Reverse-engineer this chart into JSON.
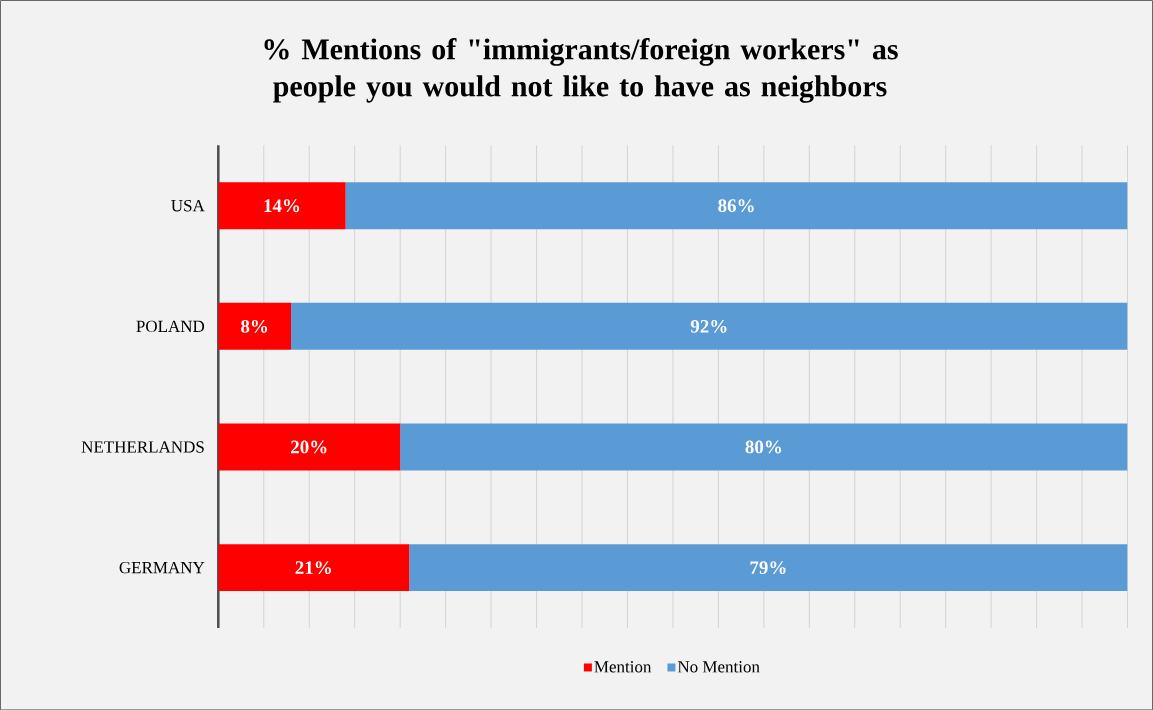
{
  "chart_data": {
    "type": "bar",
    "orientation": "horizontal",
    "stacked": true,
    "title": "% Mentions of \"immigrants/foreign workers\" as people you would not like to have as neighbors",
    "categories": [
      "USA",
      "POLAND",
      "NETHERLANDS",
      "GERMANY"
    ],
    "series": [
      {
        "name": "Mention",
        "color": "#ff0000",
        "values": [
          14,
          8,
          20,
          21
        ],
        "value_labels": [
          "14%",
          "8%",
          "20%",
          "21%"
        ]
      },
      {
        "name": "No Mention",
        "color": "#5b9bd5",
        "values": [
          86,
          92,
          80,
          79
        ],
        "value_labels": [
          "86%",
          "92%",
          "80%",
          "79%"
        ]
      }
    ],
    "grid": "x",
    "legend": "bottom",
    "tick_labels": "y"
  }
}
